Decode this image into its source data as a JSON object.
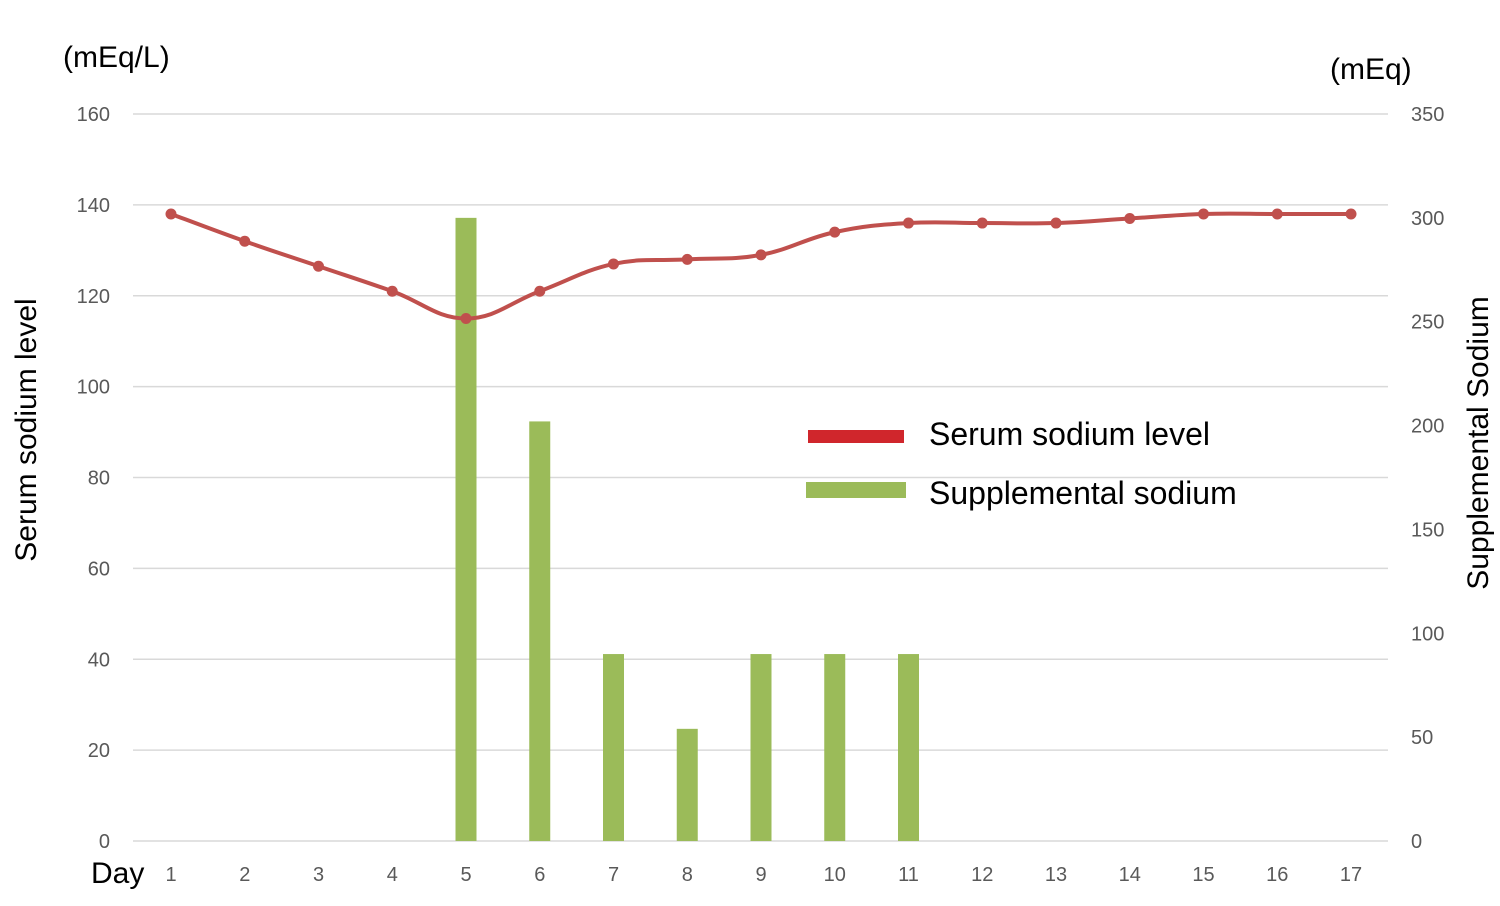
{
  "chart_data": {
    "type": "bar+line",
    "title": "",
    "xlabel": "Day",
    "y_left_label": "Serum sodium level",
    "y_left_unit": "(mEq/L)",
    "y_left_lim": [
      0,
      160
    ],
    "y_left_ticks": [
      "0",
      "20",
      "40",
      "60",
      "80",
      "100",
      "120",
      "140",
      "160"
    ],
    "y_right_label": "Supplemental Sodium",
    "y_right_unit": "(mEq)",
    "y_right_lim": [
      0,
      350
    ],
    "y_right_ticks": [
      "0",
      "50",
      "100",
      "150",
      "200",
      "250",
      "300",
      "350"
    ],
    "grid": true,
    "legend_position": "right-center",
    "categories": [
      "1",
      "2",
      "3",
      "4",
      "5",
      "6",
      "7",
      "8",
      "9",
      "10",
      "11",
      "12",
      "13",
      "14",
      "15",
      "16",
      "17"
    ],
    "series": [
      {
        "name": "Serum sodium level",
        "type": "line",
        "axis": "left",
        "color": "#c0504d",
        "legend_color": "#d0262c",
        "values": [
          138,
          132,
          126.5,
          121,
          115,
          121,
          127,
          128,
          129,
          134,
          136,
          136,
          136,
          137,
          138,
          138,
          138
        ]
      },
      {
        "name": "Supplemental sodium",
        "type": "bar",
        "axis": "right",
        "color": "#9bbb59",
        "values": [
          0,
          0,
          0,
          0,
          300,
          202,
          90,
          54,
          90,
          90,
          90,
          0,
          0,
          0,
          0,
          0,
          0
        ]
      }
    ]
  }
}
